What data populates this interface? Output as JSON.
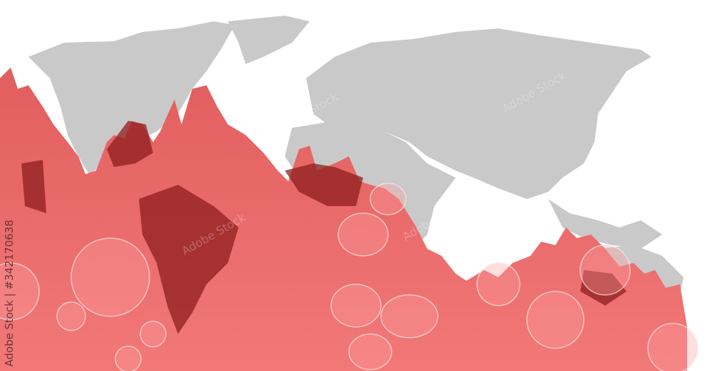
{
  "image": {
    "subject": "world-map-with-red-blood-cells",
    "colors": {
      "map": "#c8c8c8",
      "red_light": "#f07070",
      "red_mid": "#d85a5a",
      "red_dark": "#8f1e1e",
      "background": "#ffffff"
    }
  },
  "watermark": {
    "text": "Adobe Stock"
  },
  "credit": {
    "text": "Adobe Stock | #342170638"
  }
}
